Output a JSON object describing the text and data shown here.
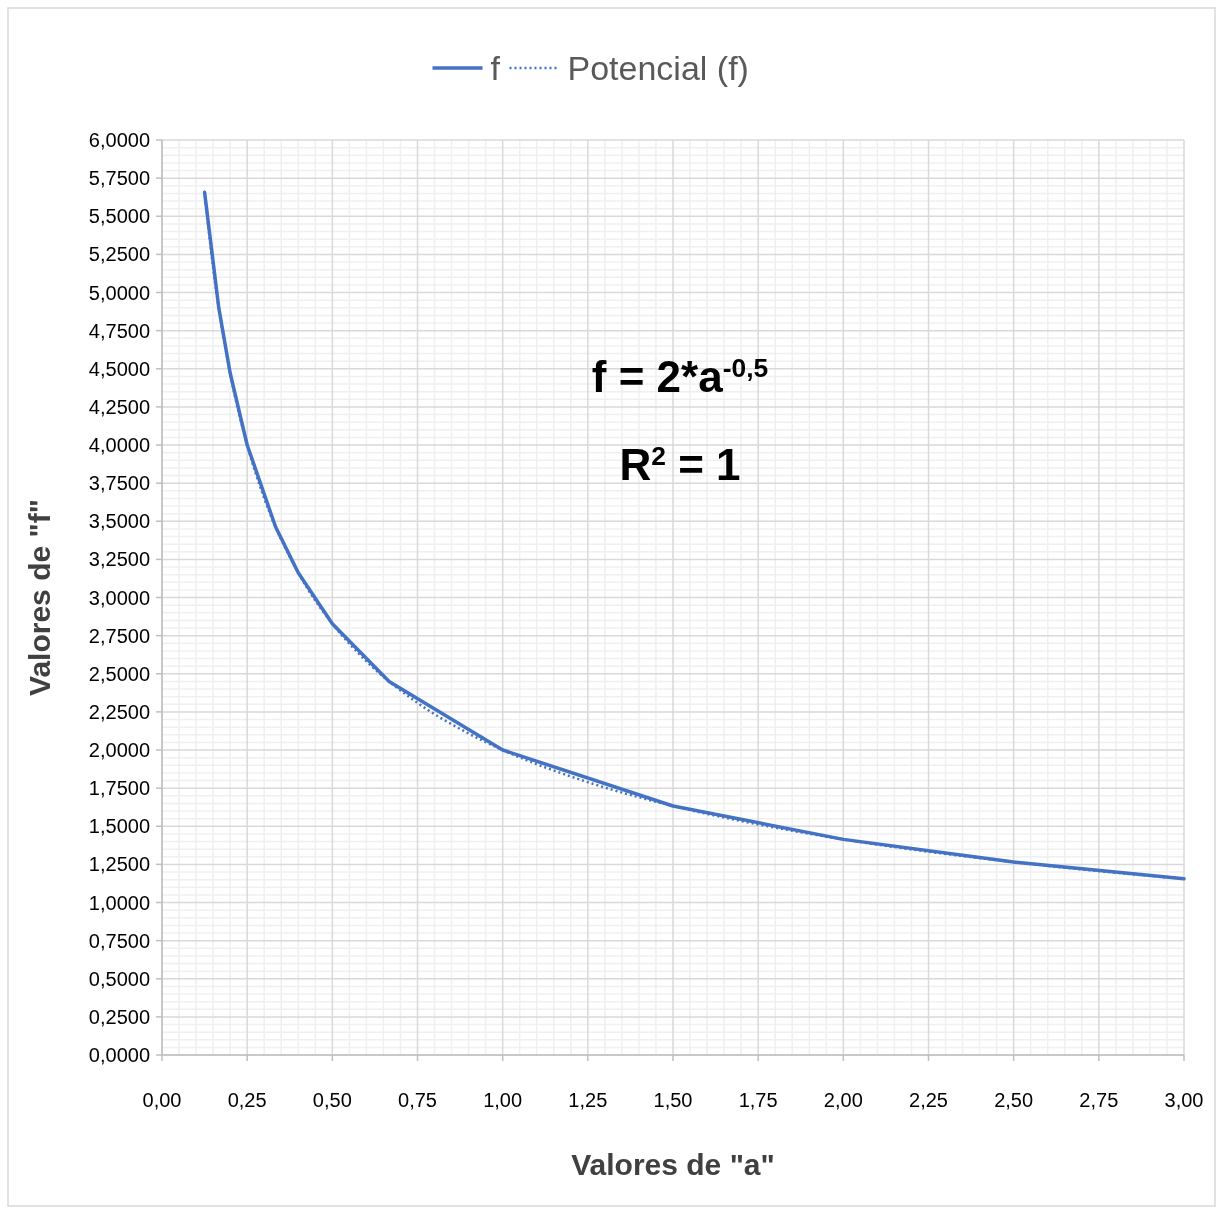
{
  "chart_data": {
    "type": "line",
    "xlabel": "Valores de \"a\"",
    "ylabel": "Valores de \"f\"",
    "x": [
      0.125,
      0.1667,
      0.2,
      0.25,
      0.3333,
      0.4,
      0.5,
      0.6667,
      1,
      1.5,
      2,
      2.5,
      3
    ],
    "series": [
      {
        "name": "f",
        "color": "#4472c4",
        "values": [
          5.657,
          4.899,
          4.472,
          4,
          3.464,
          3.162,
          2.828,
          2.449,
          2,
          1.633,
          1.414,
          1.265,
          1.155
        ],
        "line_style": "solid"
      },
      {
        "name": "Potencial (f)",
        "color": "#4472c4",
        "type": "line",
        "line_style": "dotted",
        "x": [
          0.125,
          0.15,
          0.2,
          0.25,
          0.3,
          0.4,
          0.5,
          0.6,
          0.75,
          0.9,
          1,
          1.25,
          1.5,
          1.75,
          2,
          2.5,
          3
        ],
        "values": [
          5.657,
          5.164,
          4.472,
          4,
          3.651,
          3.162,
          2.828,
          2.582,
          2.309,
          2.108,
          2,
          1.789,
          1.633,
          1.512,
          1.414,
          1.265,
          1.155
        ]
      }
    ],
    "xlim": [
      0,
      3
    ],
    "xticks": [
      {
        "value": 0,
        "label": "0,00"
      },
      {
        "value": 0.25,
        "label": "0,25"
      },
      {
        "value": 0.5,
        "label": "0,50"
      },
      {
        "value": 0.75,
        "label": "0,75"
      },
      {
        "value": 1,
        "label": "1,00"
      },
      {
        "value": 1.25,
        "label": "1,25"
      },
      {
        "value": 1.5,
        "label": "1,50"
      },
      {
        "value": 1.75,
        "label": "1,75"
      },
      {
        "value": 2,
        "label": "2,00"
      },
      {
        "value": 2.25,
        "label": "2,25"
      },
      {
        "value": 2.5,
        "label": "2,50"
      },
      {
        "value": 2.75,
        "label": "2,75"
      },
      {
        "value": 3,
        "label": "3,00"
      }
    ],
    "ylim": [
      0,
      6
    ],
    "yticks": [
      {
        "value": 0,
        "label": "0,0000"
      },
      {
        "value": 0.25,
        "label": "0,2500"
      },
      {
        "value": 0.5,
        "label": "0,5000"
      },
      {
        "value": 0.75,
        "label": "0,7500"
      },
      {
        "value": 1,
        "label": "1,0000"
      },
      {
        "value": 1.25,
        "label": "1,2500"
      },
      {
        "value": 1.5,
        "label": "1,5000"
      },
      {
        "value": 1.75,
        "label": "1,7500"
      },
      {
        "value": 2,
        "label": "2,0000"
      },
      {
        "value": 2.25,
        "label": "2,2500"
      },
      {
        "value": 2.5,
        "label": "2,5000"
      },
      {
        "value": 2.75,
        "label": "2,7500"
      },
      {
        "value": 3,
        "label": "3,0000"
      },
      {
        "value": 3.25,
        "label": "3,2500"
      },
      {
        "value": 3.5,
        "label": "3,5000"
      },
      {
        "value": 3.75,
        "label": "3,7500"
      },
      {
        "value": 4,
        "label": "4,0000"
      },
      {
        "value": 4.25,
        "label": "4,2500"
      },
      {
        "value": 4.5,
        "label": "4,5000"
      },
      {
        "value": 4.75,
        "label": "4,7500"
      },
      {
        "value": 5,
        "label": "5,0000"
      },
      {
        "value": 5.25,
        "label": "5,2500"
      },
      {
        "value": 5.5,
        "label": "5,5000"
      },
      {
        "value": 5.75,
        "label": "5,7500"
      },
      {
        "value": 6,
        "label": "6,0000"
      }
    ],
    "grid": true,
    "legend": "top",
    "marker": "none",
    "annotations": [
      "f = 2*a$^{-0,5}$",
      "R$^{2}$ = 1"
    ]
  }
}
